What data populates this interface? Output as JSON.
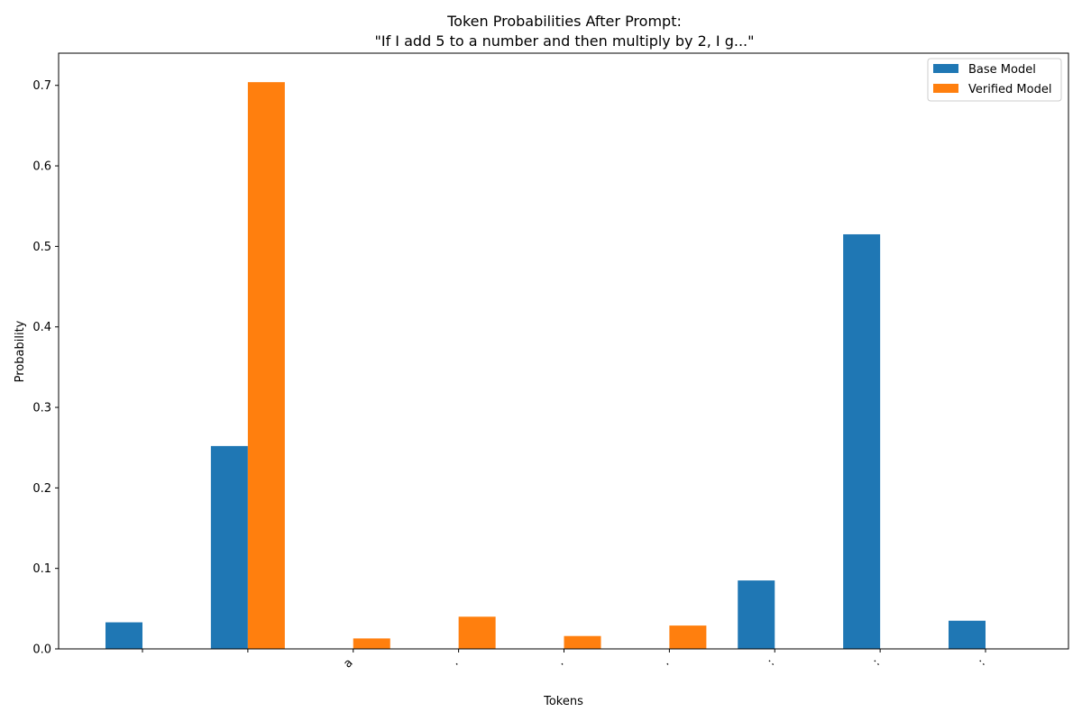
{
  "chart_data": {
    "type": "bar",
    "title_line1": "Token Probabilities After Prompt:",
    "title_line2": "\"If I add 5 to a number and then multiply by 2, I g...\"",
    "xlabel": "Tokens",
    "ylabel": "Probability",
    "ylim": [
      0,
      0.74
    ],
    "yticks": [
      "0.0",
      "0.1",
      "0.2",
      "0.3",
      "0.4",
      "0.5",
      "0.6",
      "0.7"
    ],
    "categories": [
      "",
      "",
      "a",
      ".",
      ".",
      ".",
      ":",
      ":",
      ":"
    ],
    "series": [
      {
        "name": "Base Model",
        "color": "#1f77b4",
        "values": [
          0.033,
          0.252,
          0,
          0,
          0,
          0,
          0.085,
          0.515,
          0.035
        ]
      },
      {
        "name": "Verified Model",
        "color": "#ff7f0e",
        "values": [
          0,
          0.704,
          0.013,
          0.04,
          0.016,
          0.029,
          0,
          0,
          0
        ]
      }
    ],
    "legend_position": "top-right",
    "grid": false
  }
}
